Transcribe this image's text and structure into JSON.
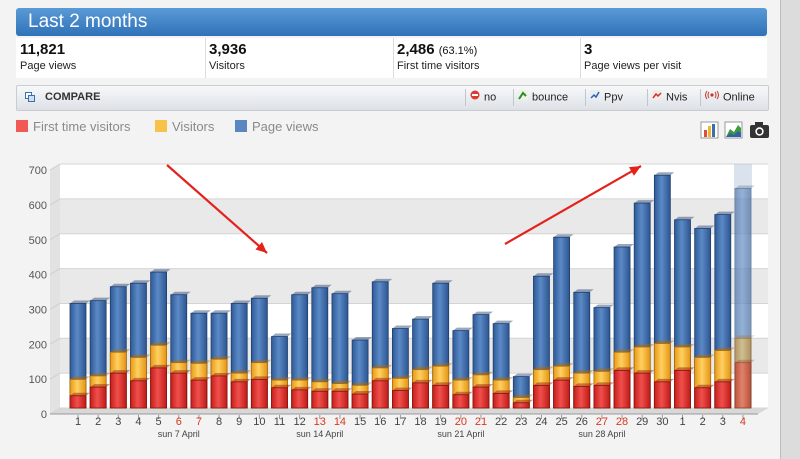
{
  "header": {
    "title": "Last 2 months"
  },
  "stats": [
    {
      "value": "11,821",
      "extra": "",
      "label": "Page views"
    },
    {
      "value": "3,936",
      "extra": "",
      "label": "Visitors"
    },
    {
      "value": "2,486",
      "extra": "(63.1%)",
      "label": "First time visitors"
    },
    {
      "value": "3",
      "extra": "",
      "label": "Page views per visit"
    }
  ],
  "compare": {
    "title": "COMPARE",
    "buttons": [
      {
        "label": "no",
        "icon": "no-entry-icon"
      },
      {
        "label": "bounce",
        "icon": "bounce-icon"
      },
      {
        "label": "Ppv",
        "icon": "ppv-chart-icon"
      },
      {
        "label": "Nvis",
        "icon": "nvis-chart-icon"
      },
      {
        "label": "Online",
        "icon": "online-broadcast-icon"
      }
    ]
  },
  "colors": {
    "first_time": "#e8403c",
    "visitors": "#f8b733",
    "page_views": "#3f6fae",
    "accent": "#2f72b8"
  },
  "chart_data": {
    "type": "bar",
    "legend": [
      "First time visitors",
      "Visitors",
      "Page views"
    ],
    "categories": [
      "1",
      "2",
      "3",
      "4",
      "5",
      "6",
      "7",
      "8",
      "9",
      "10",
      "11",
      "12",
      "13",
      "14",
      "15",
      "16",
      "17",
      "18",
      "19",
      "20",
      "21",
      "22",
      "23",
      "24",
      "25",
      "26",
      "27",
      "28",
      "29",
      "30",
      "1",
      "2",
      "3",
      "4"
    ],
    "weekend_indices": [
      5,
      6,
      12,
      13,
      19,
      20,
      26,
      27,
      33
    ],
    "week_labels": [
      {
        "index": 5,
        "label": "sun 7 April"
      },
      {
        "index": 12,
        "label": "sun 14 April"
      },
      {
        "index": 19,
        "label": "sun 21 April"
      },
      {
        "index": 26,
        "label": "sun 28 April"
      }
    ],
    "ylim": [
      0,
      700
    ],
    "yticks": [
      0,
      100,
      200,
      300,
      400,
      500,
      600,
      700
    ],
    "grid": true,
    "series": [
      {
        "name": "Page views",
        "values": [
          300,
          308,
          348,
          358,
          390,
          325,
          272,
          272,
          300,
          315,
          205,
          325,
          345,
          328,
          195,
          362,
          228,
          255,
          358,
          222,
          268,
          242,
          90,
          378,
          490,
          332,
          288,
          462,
          588,
          668,
          540,
          515,
          555,
          630
        ]
      },
      {
        "name": "Visitors",
        "values": [
          82,
          92,
          160,
          145,
          180,
          130,
          128,
          140,
          100,
          130,
          80,
          80,
          75,
          70,
          65,
          115,
          85,
          110,
          120,
          80,
          95,
          80,
          30,
          110,
          120,
          100,
          105,
          160,
          175,
          185,
          175,
          145,
          165,
          200
        ]
      },
      {
        "name": "First time visitors",
        "values": [
          35,
          60,
          100,
          78,
          115,
          100,
          80,
          92,
          75,
          82,
          58,
          52,
          48,
          48,
          40,
          78,
          50,
          72,
          65,
          38,
          60,
          42,
          15,
          65,
          80,
          62,
          65,
          108,
          100,
          75,
          108,
          58,
          75,
          130
        ]
      }
    ]
  },
  "tools": [
    {
      "icon": "bar-chart-icon"
    },
    {
      "icon": "area-chart-icon"
    },
    {
      "icon": "camera-icon"
    }
  ]
}
